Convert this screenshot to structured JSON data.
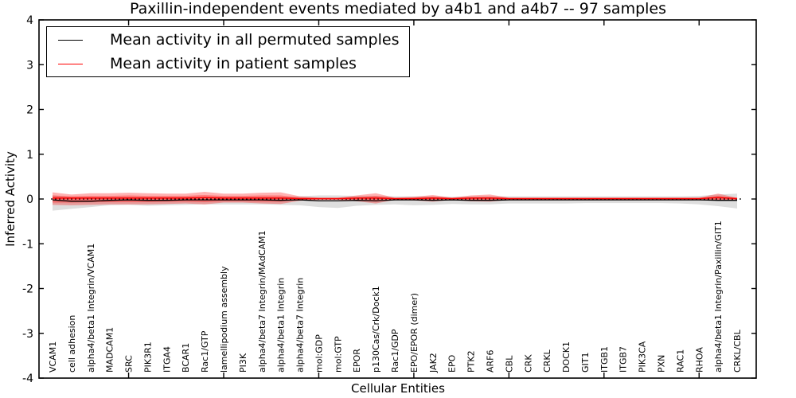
{
  "figure": {
    "title": "Paxillin-independent events mediated by a4b1 and a4b7 -- 97 samples",
    "xlabel": "Cellular Entities",
    "ylabel": "Inferred Activity"
  },
  "legend": [
    {
      "label": "Mean activity in all permuted samples",
      "color": "#000000"
    },
    {
      "label": "Mean activity in patient samples",
      "color": "#ff0000"
    }
  ],
  "chart_data": {
    "type": "line",
    "title": "Paxillin-independent events mediated by a4b1 and a4b7 -- 97 samples",
    "xlabel": "Cellular Entities",
    "ylabel": "Inferred Activity",
    "ylim": [
      -4,
      4
    ],
    "yticks": [
      4,
      3,
      2,
      1,
      0,
      -1,
      -2,
      -3,
      -4
    ],
    "x_major_tick_indices": [
      4,
      9,
      14,
      19,
      24,
      29,
      34
    ],
    "grid": false,
    "legend_position": "upper left",
    "zero_line": {
      "value": 0,
      "style": "dotted",
      "color": "#000000"
    },
    "categories": [
      "VCAM1",
      "cell adhesion",
      "alpha4/beta1 Integrin/VCAM1",
      "MADCAM1",
      "SRC",
      "PIK3R1",
      "ITGA4",
      "BCAR1",
      "Rac1/GTP",
      "lamellipodium assembly",
      "PI3K",
      "alpha4/beta7 Integrin/MAdCAM1",
      "alpha4/beta1 Integrin",
      "alpha4/beta7 Integrin",
      "mol:GDP",
      "mol:GTP",
      "EPOR",
      "p130Cas/Crk/Dock1",
      "Rac1/GDP",
      "EPO/EPOR (dimer)",
      "JAK2",
      "EPO",
      "PTK2",
      "ARF6",
      "CBL",
      "CRK",
      "CRKL",
      "DOCK1",
      "GIT1",
      "ITGB1",
      "ITGB7",
      "PIK3CA",
      "PXN",
      "RAC1",
      "RHOA",
      "alpha4/beta1 Integrin/Paxillin/GIT1",
      "CRKL/CBL"
    ],
    "series": [
      {
        "name": "Mean activity in all permuted samples",
        "color": "#000000",
        "values": [
          -0.02,
          -0.05,
          -0.05,
          -0.03,
          -0.02,
          -0.03,
          -0.03,
          -0.02,
          -0.02,
          -0.02,
          -0.02,
          -0.02,
          -0.03,
          -0.02,
          -0.04,
          -0.04,
          -0.03,
          -0.04,
          -0.02,
          -0.02,
          -0.03,
          -0.02,
          -0.03,
          -0.03,
          -0.02,
          -0.02,
          -0.02,
          -0.02,
          -0.02,
          -0.02,
          -0.02,
          -0.02,
          -0.02,
          -0.02,
          -0.02,
          -0.03,
          -0.03
        ]
      },
      {
        "name": "Mean activity in patient samples",
        "color": "#ff0000",
        "values": [
          0.02,
          0.02,
          0.02,
          0.02,
          0.02,
          0.02,
          0.02,
          0.02,
          0.03,
          0.02,
          0.02,
          0.02,
          0.02,
          0.01,
          0.01,
          0.01,
          0.02,
          0.02,
          0.01,
          0.01,
          0.02,
          0.01,
          0.02,
          0.02,
          0.01,
          0.01,
          0.01,
          0.01,
          0.01,
          0.01,
          0.01,
          0.01,
          0.01,
          0.01,
          0.01,
          0.03,
          0.01
        ]
      }
    ],
    "bands": [
      {
        "name": "permuted-samples-range",
        "color": "#999999",
        "opacity": 0.32,
        "upper": [
          0.08,
          0.05,
          0.05,
          0.05,
          0.05,
          0.05,
          0.05,
          0.05,
          0.05,
          0.05,
          0.05,
          0.05,
          0.05,
          0.06,
          0.08,
          0.08,
          0.07,
          0.07,
          0.06,
          0.06,
          0.06,
          0.05,
          0.06,
          0.06,
          0.06,
          0.06,
          0.06,
          0.06,
          0.06,
          0.06,
          0.06,
          0.06,
          0.06,
          0.06,
          0.07,
          0.1,
          0.12
        ],
        "lower": [
          -0.26,
          -0.22,
          -0.18,
          -0.14,
          -0.13,
          -0.15,
          -0.14,
          -0.13,
          -0.12,
          -0.12,
          -0.12,
          -0.12,
          -0.13,
          -0.14,
          -0.18,
          -0.2,
          -0.15,
          -0.13,
          -0.12,
          -0.14,
          -0.13,
          -0.11,
          -0.12,
          -0.12,
          -0.1,
          -0.1,
          -0.1,
          -0.1,
          -0.09,
          -0.09,
          -0.09,
          -0.09,
          -0.09,
          -0.1,
          -0.12,
          -0.16,
          -0.21
        ]
      },
      {
        "name": "patient-samples-range-outer",
        "color": "#ff0000",
        "opacity": 0.3,
        "upper": [
          0.15,
          0.1,
          0.13,
          0.13,
          0.14,
          0.13,
          0.12,
          0.12,
          0.16,
          0.12,
          0.12,
          0.14,
          0.15,
          0.06,
          0.03,
          0.03,
          0.08,
          0.13,
          0.03,
          0.05,
          0.09,
          0.03,
          0.08,
          0.1,
          0.03,
          0.03,
          0.03,
          0.03,
          0.03,
          0.03,
          0.03,
          0.03,
          0.03,
          0.03,
          0.03,
          0.12,
          0.03
        ],
        "lower": [
          -0.13,
          -0.14,
          -0.13,
          -0.12,
          -0.12,
          -0.12,
          -0.11,
          -0.1,
          -0.12,
          -0.08,
          -0.08,
          -0.1,
          -0.11,
          -0.04,
          -0.02,
          -0.02,
          -0.05,
          -0.1,
          -0.02,
          -0.03,
          -0.06,
          -0.02,
          -0.05,
          -0.06,
          -0.02,
          -0.02,
          -0.02,
          -0.02,
          -0.02,
          -0.02,
          -0.02,
          -0.02,
          -0.02,
          -0.02,
          -0.02,
          -0.03,
          -0.03
        ]
      },
      {
        "name": "patient-samples-range-inner",
        "color": "#ff0000",
        "opacity": 0.3,
        "upper": [
          0.08,
          0.06,
          0.07,
          0.07,
          0.08,
          0.07,
          0.07,
          0.07,
          0.09,
          0.07,
          0.07,
          0.08,
          0.08,
          0.03,
          0.02,
          0.02,
          0.04,
          0.07,
          0.02,
          0.03,
          0.05,
          0.02,
          0.04,
          0.05,
          0.02,
          0.02,
          0.02,
          0.02,
          0.02,
          0.02,
          0.02,
          0.02,
          0.02,
          0.02,
          0.02,
          0.07,
          0.02
        ],
        "lower": [
          -0.08,
          -0.08,
          -0.07,
          -0.07,
          -0.07,
          -0.07,
          -0.06,
          -0.06,
          -0.07,
          -0.05,
          -0.05,
          -0.06,
          -0.06,
          -0.02,
          -0.01,
          -0.01,
          -0.03,
          -0.06,
          -0.01,
          -0.02,
          -0.03,
          -0.01,
          -0.03,
          -0.03,
          -0.01,
          -0.01,
          -0.01,
          -0.01,
          -0.01,
          -0.01,
          -0.01,
          -0.01,
          -0.01,
          -0.01,
          -0.01,
          -0.02,
          -0.02
        ]
      }
    ]
  }
}
